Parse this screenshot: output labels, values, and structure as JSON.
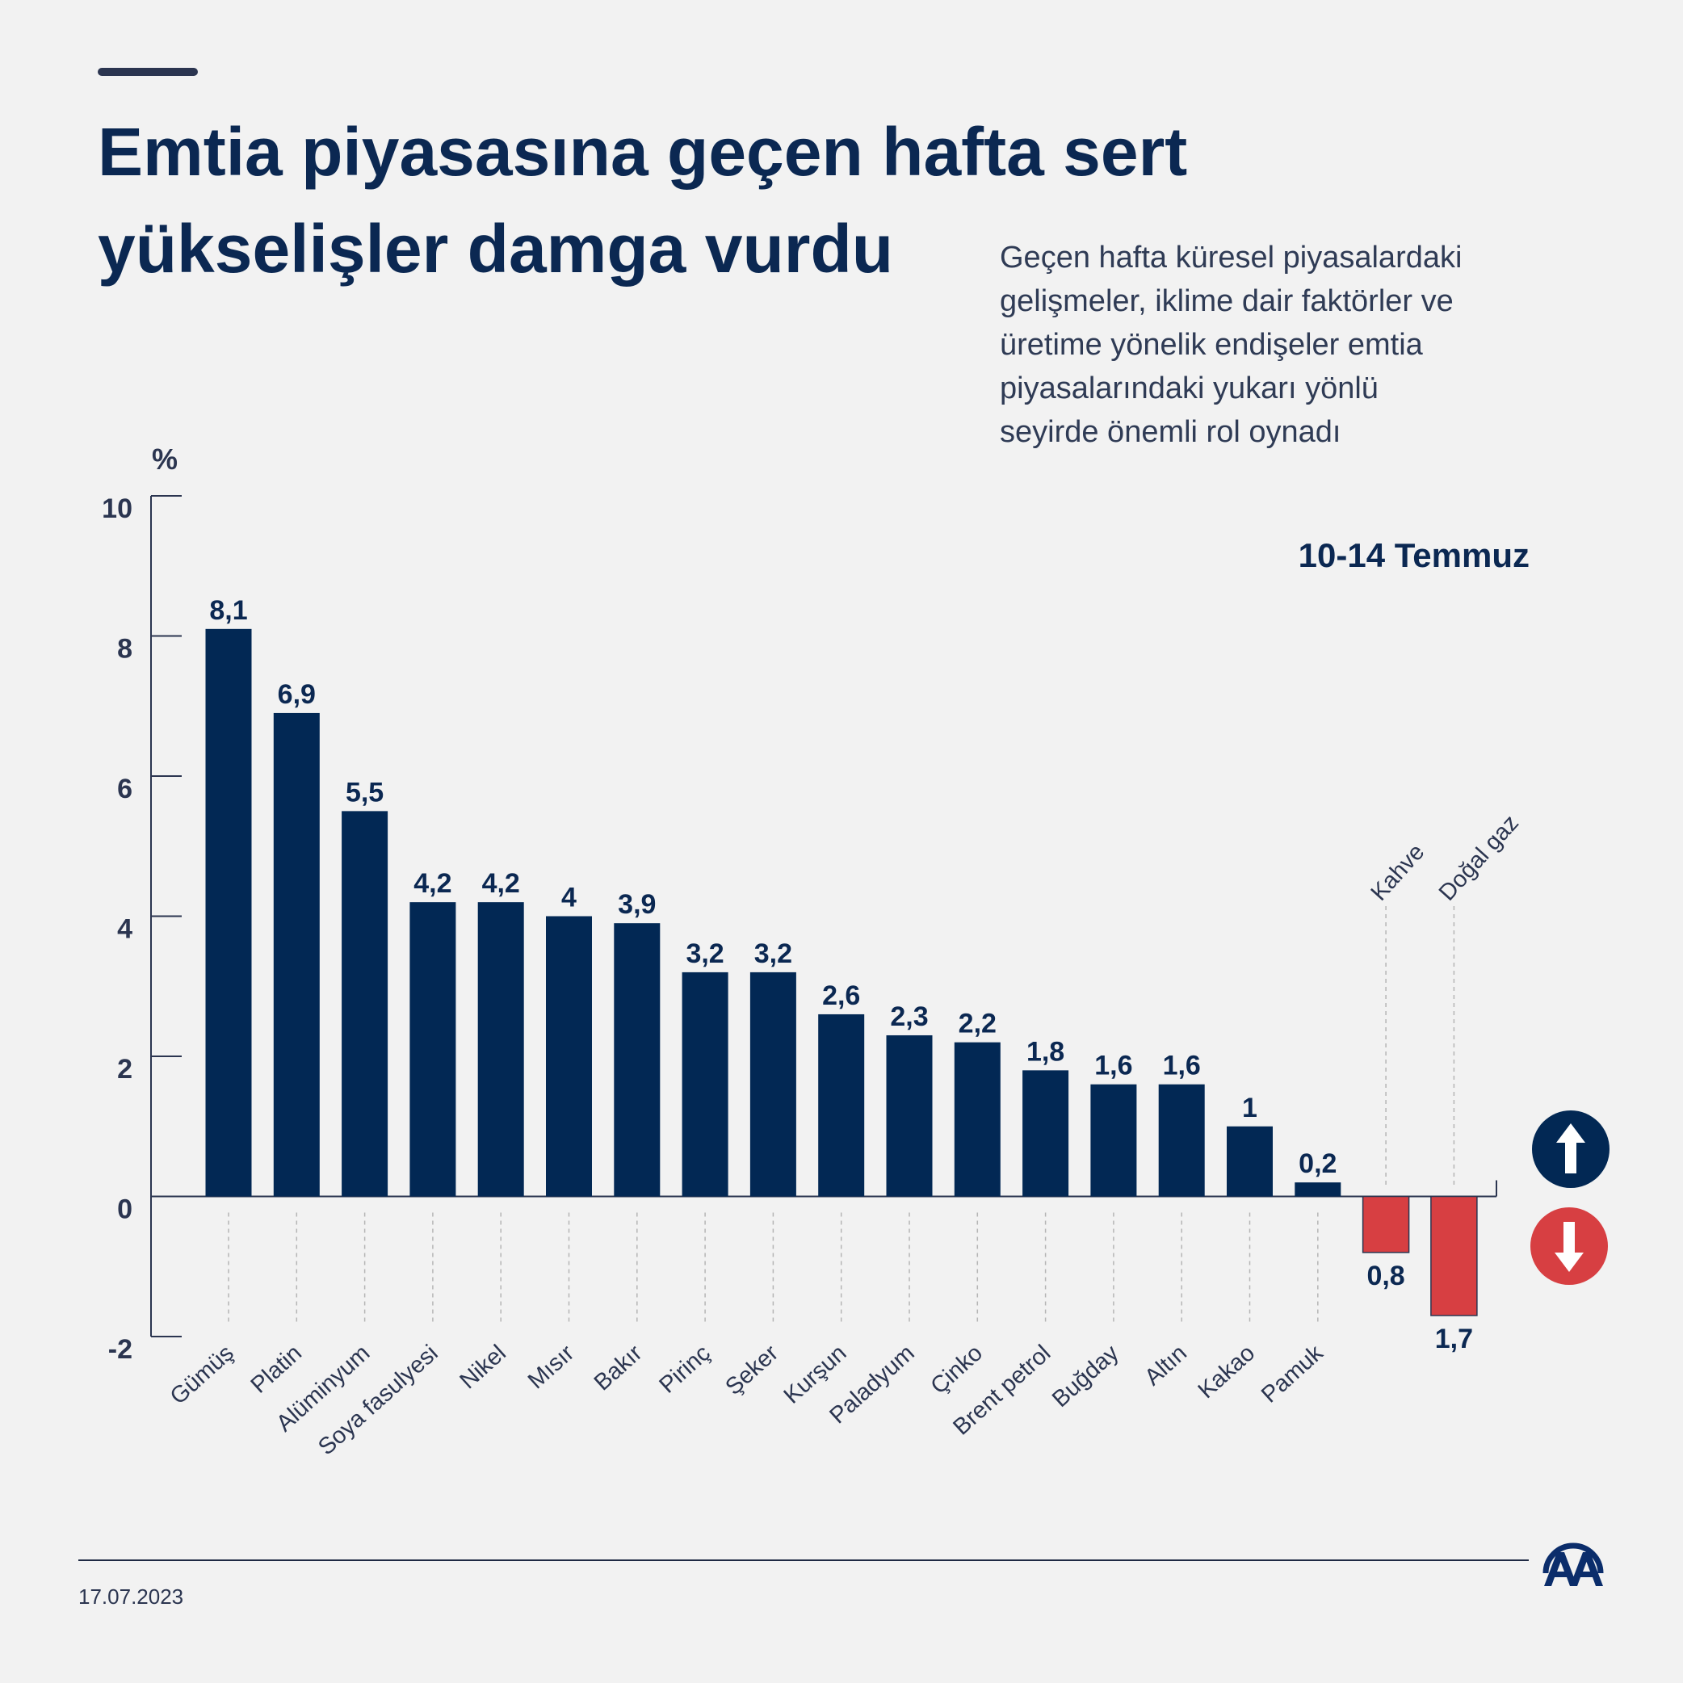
{
  "header": {
    "title_line1": "Emtia piyasasına geçen hafta sert",
    "title_line2": "yükselişler damga vurdu",
    "description_lines": [
      "Geçen hafta küresel piyasalardaki",
      "gelişmeler, iklime dair faktörler ve",
      "üretime yönelik endişeler emtia",
      "piyasalarındaki yukarı yönlü",
      "seyirde önemli rol oynadı"
    ]
  },
  "footer": {
    "date": "17.07.2023",
    "logo_text": "AA"
  },
  "colors": {
    "positive": "#022854",
    "negative": "#d73f42",
    "title": "#0b2852",
    "background": "#f2f2f2"
  },
  "chart_data": {
    "type": "bar",
    "title": "",
    "subtitle": "10-14 Temmuz",
    "ylabel": "%",
    "ylim": [
      -2,
      10
    ],
    "yticks": [
      10,
      8,
      6,
      4,
      2,
      0,
      -2
    ],
    "grid": false,
    "categories": [
      "Gümüş",
      "Platin",
      "Alüminyum",
      "Soya fasulyesi",
      "Nikel",
      "Mısır",
      "Bakır",
      "Pirinç",
      "Şeker",
      "Kurşun",
      "Paladyum",
      "Çinko",
      "Brent petrol",
      "Buğday",
      "Altın",
      "Kakao",
      "Pamuk",
      "Kahve",
      "Doğal gaz"
    ],
    "values": [
      8.1,
      6.9,
      5.5,
      4.2,
      4.2,
      4,
      3.9,
      3.2,
      3.2,
      2.6,
      2.3,
      2.2,
      1.8,
      1.6,
      1.6,
      1,
      0.2,
      -0.8,
      -1.7
    ],
    "data_labels": [
      "8,1",
      "6,9",
      "5,5",
      "4,2",
      "4,2",
      "4",
      "3,9",
      "3,2",
      "3,2",
      "2,6",
      "2,3",
      "2,2",
      "1,8",
      "1,6",
      "1,6",
      "1",
      "0,2",
      "0,8",
      "1,7"
    ],
    "legend": [
      {
        "icon": "arrow-up-icon",
        "meaning": "increase",
        "color": "#022854"
      },
      {
        "icon": "arrow-down-icon",
        "meaning": "decrease",
        "color": "#d73f42"
      }
    ]
  }
}
